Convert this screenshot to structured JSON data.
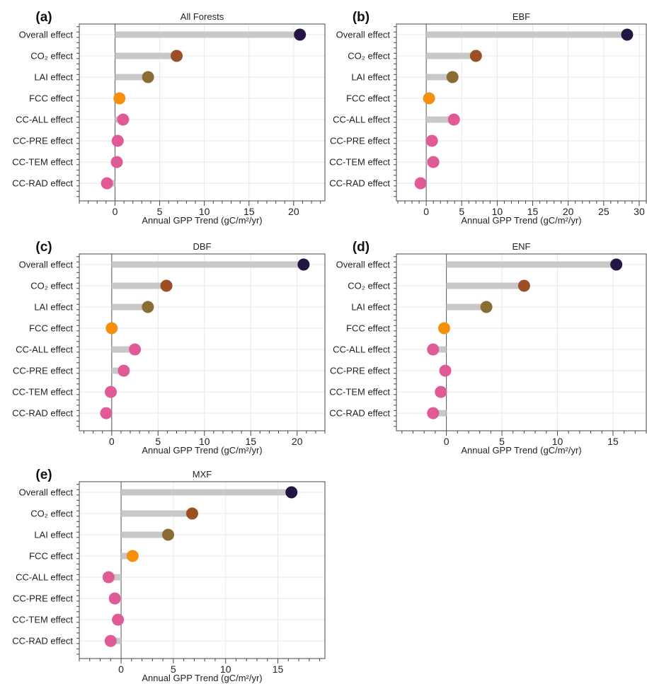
{
  "chart_data": [
    {
      "type": "lollipop",
      "panel_label": "(a)",
      "title": "All Forests",
      "xlabel": "Annual GPP Trend  (gC/m²/yr)",
      "xlim": [
        -4,
        23.5
      ],
      "xticks": [
        0,
        5,
        10,
        15,
        20
      ],
      "grid": true,
      "categories": [
        "Overall effect",
        "CO₂ effect",
        "LAI effect",
        "FCC effect",
        "CC-ALL effect",
        "CC-PRE effect",
        "CC-TEM effect",
        "CC-RAD effect"
      ],
      "values": [
        20.7,
        6.9,
        3.7,
        0.5,
        0.9,
        0.3,
        0.2,
        -0.9
      ]
    },
    {
      "type": "lollipop",
      "panel_label": "(b)",
      "title": "EBF",
      "xlabel": "Annual GPP Trend  (gC/m²/yr)",
      "xlim": [
        -4.2,
        31
      ],
      "xticks": [
        0,
        5,
        10,
        15,
        20,
        25,
        30
      ],
      "grid": true,
      "categories": [
        "Overall effect",
        "CO₂ effect",
        "LAI effect",
        "FCC effect",
        "CC-ALL effect",
        "CC-PRE effect",
        "CC-TEM effect",
        "CC-RAD effect"
      ],
      "values": [
        28.3,
        7.0,
        3.7,
        0.4,
        3.9,
        0.8,
        1.0,
        -0.8
      ]
    },
    {
      "type": "lollipop",
      "panel_label": "(c)",
      "title": "DBF",
      "xlabel": "Annual GPP Trend  (gC/m²/yr)",
      "xlim": [
        -3.5,
        23
      ],
      "xticks": [
        0,
        5,
        10,
        15,
        20
      ],
      "grid": true,
      "categories": [
        "Overall effect",
        "CO₂ effect",
        "LAI effect",
        "FCC effect",
        "CC-ALL effect",
        "CC-PRE effect",
        "CC-TEM effect",
        "CC-RAD effect"
      ],
      "values": [
        20.7,
        5.9,
        3.9,
        0.0,
        2.5,
        1.3,
        -0.1,
        -0.6
      ]
    },
    {
      "type": "lollipop",
      "panel_label": "(d)",
      "title": "ENF",
      "xlabel": "Annual GPP Trend  (gC/m²/yr)",
      "xlim": [
        -4.5,
        18
      ],
      "xticks": [
        0,
        5,
        10,
        15
      ],
      "grid": true,
      "categories": [
        "Overall effect",
        "CO₂ effect",
        "LAI effect",
        "FCC effect",
        "CC-ALL effect",
        "CC-PRE effect",
        "CC-TEM effect",
        "CC-RAD effect"
      ],
      "values": [
        15.3,
        7.0,
        3.6,
        -0.2,
        -1.2,
        -0.1,
        -0.5,
        -1.2
      ]
    },
    {
      "type": "lollipop",
      "panel_label": "(e)",
      "title": "MXF",
      "xlabel": "Annual GPP Trend  (gC/m²/yr)",
      "xlim": [
        -4,
        19.5
      ],
      "xticks": [
        0,
        5,
        10,
        15
      ],
      "grid": true,
      "categories": [
        "Overall effect",
        "CO₂ effect",
        "LAI effect",
        "FCC effect",
        "CC-ALL effect",
        "CC-PRE effect",
        "CC-TEM effect",
        "CC-RAD effect"
      ],
      "values": [
        16.3,
        6.8,
        4.5,
        1.1,
        -1.2,
        -0.6,
        -0.3,
        -1.0
      ]
    }
  ],
  "colors": {
    "overall": "#241644",
    "co2": "#9a4f24",
    "lai": "#8c6c36",
    "fcc": "#f5900f",
    "cc": "#e05a97",
    "stem": "#c8c8c8",
    "grid": "#e8e8e8",
    "axis": "#444444"
  }
}
